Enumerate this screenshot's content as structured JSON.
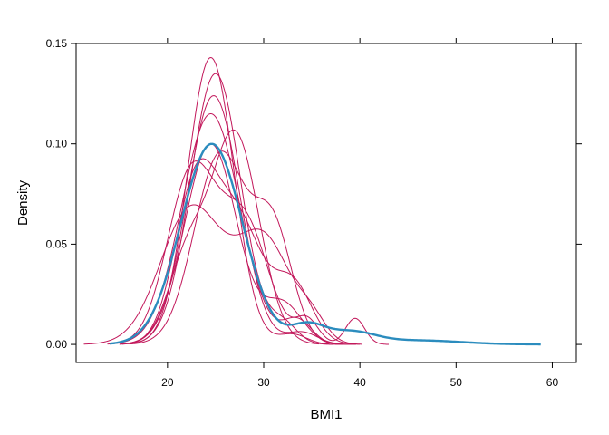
{
  "chart_data": {
    "type": "line",
    "title": "",
    "xlabel": "BMI1",
    "ylabel": "Density",
    "xlim": [
      10.5,
      62.5
    ],
    "ylim": [
      -0.009,
      0.15
    ],
    "grid": false,
    "legend": "none",
    "x_ticks": [
      {
        "value": 20,
        "label": "20"
      },
      {
        "value": 30,
        "label": "30"
      },
      {
        "value": 40,
        "label": "40"
      },
      {
        "value": 50,
        "label": "50"
      },
      {
        "value": 60,
        "label": "60"
      }
    ],
    "y_ticks": [
      {
        "value": 0.0,
        "label": "0.00"
      },
      {
        "value": 0.05,
        "label": "0.05"
      },
      {
        "value": 0.1,
        "label": "0.10"
      },
      {
        "value": 0.15,
        "label": "0.15"
      }
    ],
    "colors": {
      "observed": "#2b8cbe",
      "imputed": "#c2185b"
    },
    "series": [
      {
        "role": "observed",
        "color": "#2b8cbe",
        "components": [
          [
            24.6,
            0.1,
            3.2
          ],
          [
            34.5,
            0.009,
            1.8
          ],
          [
            39,
            0.006,
            2.5
          ],
          [
            46,
            0.002,
            4.5
          ]
        ]
      },
      {
        "role": "imputed",
        "color": "#c2185b",
        "components": [
          [
            24.5,
            0.143,
            2.4
          ],
          [
            33,
            0.005,
            1.5
          ]
        ]
      },
      {
        "role": "imputed",
        "color": "#c2185b",
        "components": [
          [
            25,
            0.135,
            2.6
          ],
          [
            32,
            0.01,
            1.5
          ]
        ]
      },
      {
        "role": "imputed",
        "color": "#c2185b",
        "components": [
          [
            24.8,
            0.124,
            2.7
          ],
          [
            34,
            0.006,
            1.6
          ]
        ]
      },
      {
        "role": "imputed",
        "color": "#c2185b",
        "components": [
          [
            24.5,
            0.115,
            3.0
          ],
          [
            33.5,
            0.012,
            1.5
          ]
        ]
      },
      {
        "role": "imputed",
        "color": "#c2185b",
        "components": [
          [
            25.5,
            0.095,
            2.7
          ],
          [
            31,
            0.055,
            2.0
          ]
        ]
      },
      {
        "role": "imputed",
        "color": "#c2185b",
        "components": [
          [
            27,
            0.105,
            2.5
          ],
          [
            22,
            0.04,
            2.0
          ]
        ]
      },
      {
        "role": "imputed",
        "color": "#c2185b",
        "components": [
          [
            22.5,
            0.085,
            2.5
          ],
          [
            28,
            0.06,
            2.5
          ],
          [
            34.5,
            0.012,
            1.2
          ],
          [
            39.5,
            0.013,
            1.0
          ]
        ]
      },
      {
        "role": "imputed",
        "color": "#c2185b",
        "components": [
          [
            23,
            0.08,
            2.2
          ],
          [
            27.5,
            0.058,
            2.4
          ],
          [
            33,
            0.03,
            2.0
          ]
        ]
      },
      {
        "role": "imputed",
        "color": "#c2185b",
        "components": [
          [
            22.5,
            0.068,
            3.2
          ],
          [
            30,
            0.052,
            2.8
          ],
          [
            35,
            0.01,
            1.5
          ]
        ]
      },
      {
        "role": "imputed",
        "color": "#c2185b",
        "components": [
          [
            24.5,
            0.1,
            2.7
          ],
          [
            32,
            0.02,
            2.0
          ]
        ]
      }
    ]
  }
}
